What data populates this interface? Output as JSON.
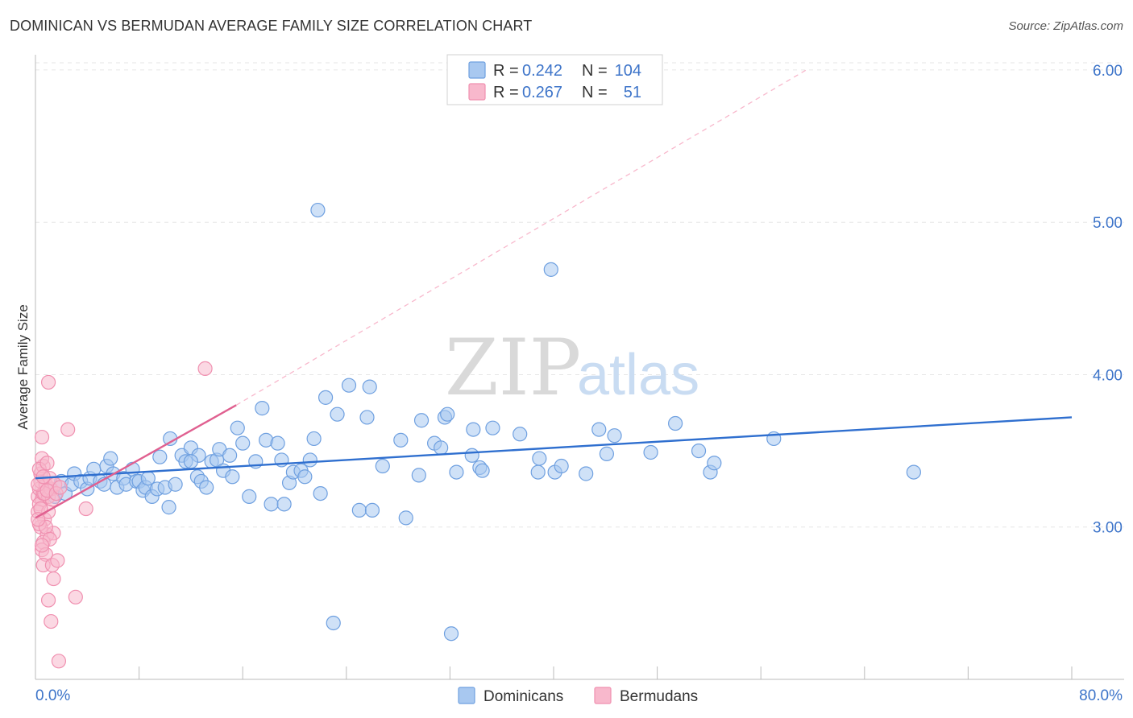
{
  "header": {
    "title": "DOMINICAN VS BERMUDAN AVERAGE FAMILY SIZE CORRELATION CHART",
    "source": "Source: ZipAtlas.com"
  },
  "watermark": {
    "zip": "ZIP",
    "atlas": "atlas"
  },
  "legend_top": {
    "rows": [
      {
        "r_label": "R = ",
        "r_value": "0.242",
        "n_label": "N = ",
        "n_value": "104",
        "color": "#a8c8f0"
      },
      {
        "r_label": "R = ",
        "r_value": "0.267",
        "n_label": "N = ",
        "n_value": "51",
        "color": "#f8b8cc"
      }
    ]
  },
  "legend_bottom": {
    "items": [
      {
        "label": "Dominicans",
        "color": "#a8c8f0"
      },
      {
        "label": "Bermudans",
        "color": "#f8b8cc"
      }
    ]
  },
  "chart_data": {
    "type": "scatter",
    "title": "DOMINICAN VS BERMUDAN AVERAGE FAMILY SIZE CORRELATION CHART",
    "xlabel": "",
    "ylabel": "Average Family Size",
    "xlim": [
      0,
      80
    ],
    "ylim": [
      2.0,
      6.1
    ],
    "x_tick_labels": [
      "0.0%",
      "80.0%"
    ],
    "y_ticks": [
      3.0,
      4.0,
      5.0,
      6.0
    ],
    "y_tick_labels": [
      "3.00",
      "4.00",
      "5.00",
      "6.00"
    ],
    "grid": true,
    "legend_placement": "top-center",
    "series": [
      {
        "name": "Dominicans",
        "color": "#6fa0e0",
        "fill": "#a8c8f0",
        "trend": {
          "x": [
            0,
            80
          ],
          "y": [
            3.32,
            3.72
          ],
          "style": "solid",
          "color": "#2f6fcf"
        },
        "points": [
          [
            1.2,
            3.25
          ],
          [
            1.5,
            3.2
          ],
          [
            2.0,
            3.3
          ],
          [
            2.3,
            3.22
          ],
          [
            2.8,
            3.28
          ],
          [
            3.0,
            3.35
          ],
          [
            3.5,
            3.3
          ],
          [
            4.0,
            3.25
          ],
          [
            4.2,
            3.32
          ],
          [
            4.5,
            3.38
          ],
          [
            5.0,
            3.3
          ],
          [
            5.3,
            3.28
          ],
          [
            5.5,
            3.4
          ],
          [
            5.8,
            3.45
          ],
          [
            6.0,
            3.35
          ],
          [
            6.3,
            3.26
          ],
          [
            6.8,
            3.32
          ],
          [
            7.0,
            3.28
          ],
          [
            7.5,
            3.38
          ],
          [
            7.8,
            3.3
          ],
          [
            8.0,
            3.3
          ],
          [
            8.3,
            3.24
          ],
          [
            8.5,
            3.26
          ],
          [
            8.7,
            3.32
          ],
          [
            9.0,
            3.2
          ],
          [
            9.4,
            3.25
          ],
          [
            9.6,
            3.46
          ],
          [
            10.0,
            3.26
          ],
          [
            10.3,
            3.13
          ],
          [
            10.4,
            3.58
          ],
          [
            10.8,
            3.28
          ],
          [
            11.3,
            3.47
          ],
          [
            11.6,
            3.43
          ],
          [
            12.0,
            3.52
          ],
          [
            12.5,
            3.33
          ],
          [
            12.6,
            3.47
          ],
          [
            12.8,
            3.3
          ],
          [
            13.2,
            3.26
          ],
          [
            13.6,
            3.43
          ],
          [
            14.0,
            3.44
          ],
          [
            14.2,
            3.51
          ],
          [
            14.5,
            3.37
          ],
          [
            15.0,
            3.47
          ],
          [
            15.2,
            3.33
          ],
          [
            15.6,
            3.65
          ],
          [
            16.0,
            3.55
          ],
          [
            16.5,
            3.2
          ],
          [
            17.0,
            3.43
          ],
          [
            17.5,
            3.78
          ],
          [
            17.8,
            3.57
          ],
          [
            18.2,
            3.15
          ],
          [
            18.7,
            3.55
          ],
          [
            19.0,
            3.44
          ],
          [
            19.2,
            3.15
          ],
          [
            19.6,
            3.29
          ],
          [
            19.9,
            3.36
          ],
          [
            20.5,
            3.37
          ],
          [
            20.8,
            3.33
          ],
          [
            21.2,
            3.44
          ],
          [
            21.5,
            3.58
          ],
          [
            22.0,
            3.22
          ],
          [
            22.4,
            3.85
          ],
          [
            21.8,
            5.08
          ],
          [
            23.3,
            3.74
          ],
          [
            24.2,
            3.93
          ],
          [
            25.0,
            3.11
          ],
          [
            25.6,
            3.72
          ],
          [
            25.8,
            3.92
          ],
          [
            26.8,
            3.4
          ],
          [
            28.2,
            3.57
          ],
          [
            28.6,
            3.06
          ],
          [
            29.6,
            3.34
          ],
          [
            29.8,
            3.7
          ],
          [
            30.8,
            3.55
          ],
          [
            31.3,
            3.52
          ],
          [
            31.6,
            3.72
          ],
          [
            31.8,
            3.74
          ],
          [
            32.5,
            3.36
          ],
          [
            33.7,
            3.47
          ],
          [
            33.8,
            3.64
          ],
          [
            34.3,
            3.39
          ],
          [
            34.5,
            3.37
          ],
          [
            35.3,
            3.65
          ],
          [
            37.4,
            3.61
          ],
          [
            38.8,
            3.36
          ],
          [
            38.9,
            3.45
          ],
          [
            39.8,
            4.69
          ],
          [
            40.1,
            3.36
          ],
          [
            40.6,
            3.4
          ],
          [
            42.5,
            3.35
          ],
          [
            43.5,
            3.64
          ],
          [
            44.1,
            3.48
          ],
          [
            44.7,
            3.6
          ],
          [
            47.5,
            3.49
          ],
          [
            49.4,
            3.68
          ],
          [
            51.2,
            3.5
          ],
          [
            52.1,
            3.36
          ],
          [
            52.4,
            3.42
          ],
          [
            57.0,
            3.58
          ],
          [
            67.8,
            3.36
          ],
          [
            23.0,
            2.37
          ],
          [
            32.1,
            2.3
          ],
          [
            12.0,
            3.43
          ],
          [
            26.0,
            3.11
          ]
        ]
      },
      {
        "name": "Bermudans",
        "color": "#f090b0",
        "fill": "#f8b8cc",
        "trend": {
          "x": [
            0,
            15.5
          ],
          "y": [
            3.06,
            3.8
          ],
          "style": "solid",
          "color": "#e06090",
          "extension": {
            "x": [
              15.5,
              59.5
            ],
            "y": [
              3.8,
              6.0
            ],
            "style": "dashed"
          }
        },
        "points": [
          [
            0.2,
            3.2
          ],
          [
            0.3,
            3.25
          ],
          [
            0.4,
            3.3
          ],
          [
            0.5,
            3.18
          ],
          [
            0.3,
            3.15
          ],
          [
            0.6,
            3.22
          ],
          [
            0.8,
            3.28
          ],
          [
            0.4,
            3.35
          ],
          [
            0.6,
            3.4
          ],
          [
            0.5,
            3.45
          ],
          [
            0.2,
            3.1
          ],
          [
            0.7,
            3.05
          ],
          [
            0.4,
            3.0
          ],
          [
            0.9,
            2.95
          ],
          [
            0.6,
            2.9
          ],
          [
            0.5,
            2.85
          ],
          [
            0.8,
            2.82
          ],
          [
            1.0,
            3.2
          ],
          [
            1.2,
            3.25
          ],
          [
            0.3,
            3.38
          ],
          [
            0.9,
            3.42
          ],
          [
            1.1,
            3.32
          ],
          [
            1.3,
            3.18
          ],
          [
            1.5,
            3.28
          ],
          [
            0.7,
            3.22
          ],
          [
            0.2,
            3.28
          ],
          [
            1.0,
            3.1
          ],
          [
            1.4,
            2.96
          ],
          [
            0.6,
            2.75
          ],
          [
            1.3,
            2.75
          ],
          [
            1.7,
            2.78
          ],
          [
            1.0,
            2.52
          ],
          [
            1.2,
            2.38
          ],
          [
            1.8,
            2.12
          ],
          [
            3.1,
            2.54
          ],
          [
            1.4,
            2.66
          ],
          [
            3.9,
            3.12
          ],
          [
            2.5,
            3.64
          ],
          [
            0.5,
            3.59
          ],
          [
            1.0,
            3.95
          ],
          [
            13.1,
            4.04
          ],
          [
            0.3,
            3.02
          ],
          [
            0.8,
            3.0
          ],
          [
            1.1,
            2.92
          ],
          [
            0.4,
            3.12
          ],
          [
            0.9,
            3.24
          ],
          [
            0.6,
            3.33
          ],
          [
            1.6,
            3.22
          ],
          [
            0.2,
            3.05
          ],
          [
            1.9,
            3.26
          ],
          [
            0.5,
            2.88
          ]
        ]
      }
    ]
  }
}
